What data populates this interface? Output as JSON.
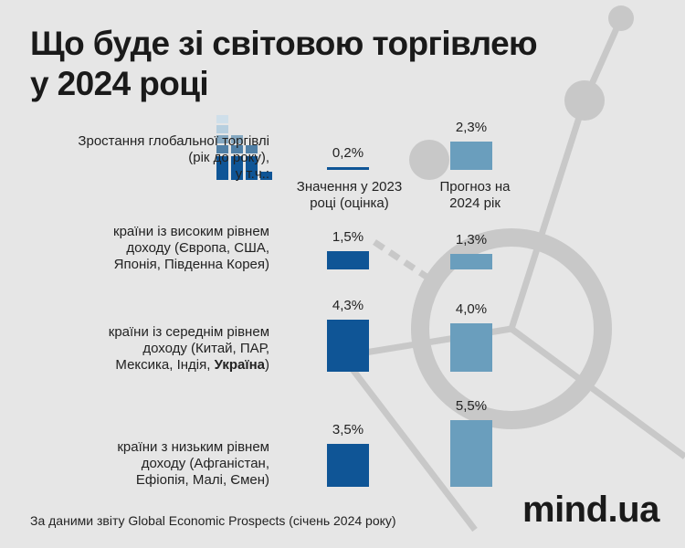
{
  "chart_data": {
    "type": "bar",
    "title": "Що буде зі світовою торгівлею у 2024 році",
    "unit": "%",
    "series": [
      {
        "name": "Значення у 2023 році (оцінка)",
        "color": "#0f5596"
      },
      {
        "name": "Прогноз на 2024 рік",
        "color": "#6a9ebd"
      }
    ],
    "rows": [
      {
        "label": "Зростання глобальної торгівлі (рік до року), у т.ч.:",
        "values": [
          0.2,
          2.3
        ],
        "labels": [
          "0,2%",
          "2,3%"
        ]
      },
      {
        "label": "країни із високим рівнем доходу (Європа, США, Японія, Південна Корея)",
        "values": [
          1.5,
          1.3
        ],
        "labels": [
          "1,5%",
          "1,3%"
        ]
      },
      {
        "label": "країни із середнім рівнем доходу (Китай, ПАР, Мексика, Індія, ",
        "label_highlight": "Україна",
        "label_suffix": ")",
        "values": [
          4.3,
          4.0
        ],
        "labels": [
          "4,3%",
          "4,0%"
        ]
      },
      {
        "label": "країни з низьким рівнем доходу (Афганістан, Ефіопія, Малі, Ємен)",
        "values": [
          3.5,
          5.5
        ],
        "labels": [
          "3,5%",
          "5,5%"
        ]
      }
    ]
  },
  "footer": {
    "source": "За даними звіту Global Economic Prospects (січень 2024 року)",
    "brand": "mind.ua"
  }
}
